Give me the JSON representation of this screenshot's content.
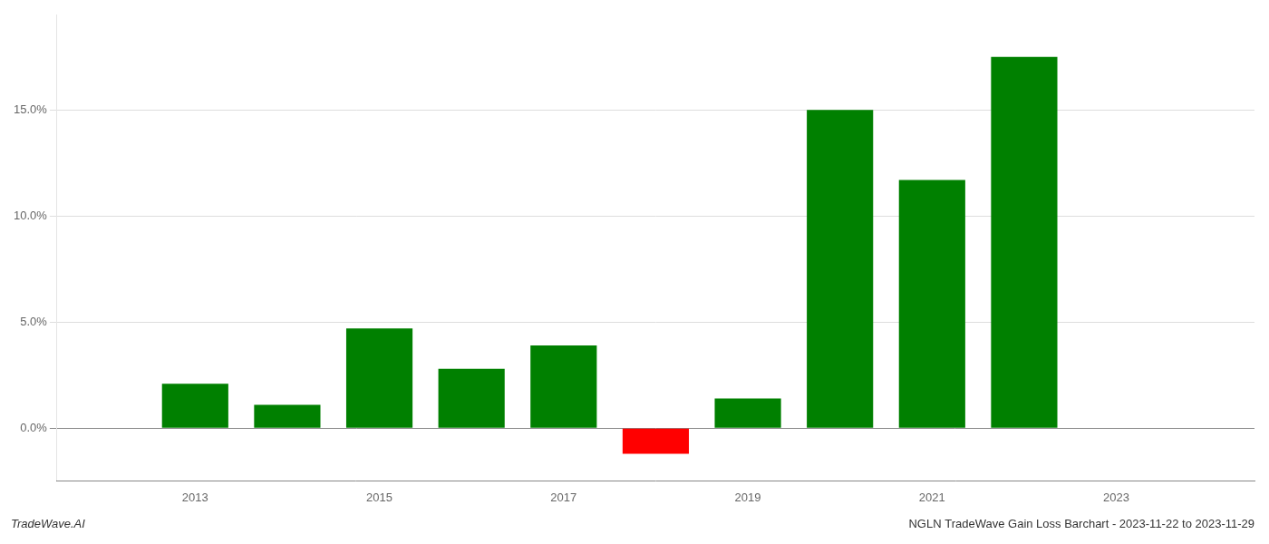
{
  "chart_data": {
    "type": "bar",
    "title": "NGLN TradeWave Gain Loss Barchart - 2023-11-22 to 2023-11-29",
    "annotations": [
      "TradeWave.AI"
    ],
    "x": [
      2013,
      2014,
      2015,
      2016,
      2017,
      2018,
      2019,
      2020,
      2021,
      2022
    ],
    "values": [
      0.021,
      0.011,
      0.047,
      0.028,
      0.039,
      -0.012,
      0.014,
      0.15,
      0.117,
      0.175
    ],
    "colors": [
      "#008000",
      "#008000",
      "#008000",
      "#008000",
      "#008000",
      "#ff0000",
      "#008000",
      "#008000",
      "#008000",
      "#008000"
    ],
    "xlim": [
      2011.5,
      2024.5
    ],
    "xticks": [
      2013,
      2015,
      2017,
      2019,
      2021,
      2023
    ],
    "ylim": [
      -0.025,
      0.195
    ],
    "yticks": [
      {
        "value": 0.0,
        "label": "0.0%"
      },
      {
        "value": 0.05,
        "label": "5.0%"
      },
      {
        "value": 0.1,
        "label": "10.0%"
      },
      {
        "value": 0.15,
        "label": "15.0%"
      }
    ],
    "grid": true
  }
}
